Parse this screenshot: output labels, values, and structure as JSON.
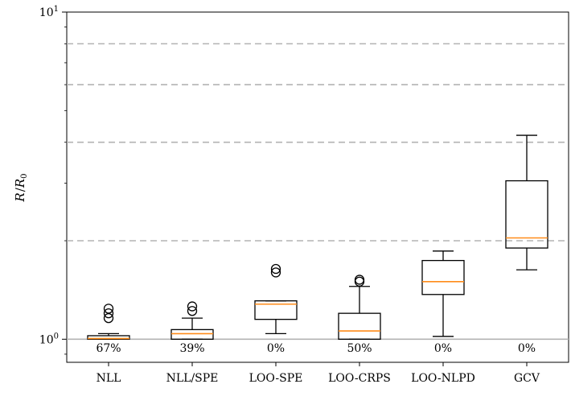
{
  "chart_data": {
    "type": "box",
    "title": "",
    "xlabel": "",
    "ylabel": "R / R0",
    "ylabel_parts": {
      "main": "R",
      "slash": "/",
      "base": "R",
      "sub": "0"
    },
    "yscale": "log",
    "ylim": [
      0.85,
      10
    ],
    "yticks": [
      {
        "value": 1,
        "base": "10",
        "exp": "0"
      },
      {
        "value": 10,
        "base": "10",
        "exp": "1"
      }
    ],
    "reference_line": 1,
    "grid": {
      "style": "dashed-horizontal",
      "values": [
        2,
        4,
        6,
        8
      ]
    },
    "categories": [
      "NLL",
      "NLL/SPE",
      "LOO-SPE",
      "LOO-CRPS",
      "LOO-NLPD",
      "GCV"
    ],
    "boxes": [
      {
        "whisker_low": 1.0,
        "q1": 1.0,
        "median": 1.005,
        "q3": 1.025,
        "whisker_high": 1.04,
        "outliers": [
          1.16,
          1.2,
          1.24
        ]
      },
      {
        "whisker_low": 1.0,
        "q1": 1.0,
        "median": 1.04,
        "q3": 1.07,
        "whisker_high": 1.16,
        "outliers": [
          1.22,
          1.26
        ]
      },
      {
        "whisker_low": 1.04,
        "q1": 1.15,
        "median": 1.28,
        "q3": 1.31,
        "whisker_high": 1.31,
        "outliers": [
          1.6,
          1.64
        ]
      },
      {
        "whisker_low": 1.0,
        "q1": 1.0,
        "median": 1.06,
        "q3": 1.2,
        "whisker_high": 1.45,
        "outliers": [
          1.5,
          1.52
        ]
      },
      {
        "whisker_low": 1.02,
        "q1": 1.37,
        "median": 1.5,
        "q3": 1.74,
        "whisker_high": 1.86,
        "outliers": []
      },
      {
        "whisker_low": 1.63,
        "q1": 1.9,
        "median": 2.04,
        "q3": 3.05,
        "whisker_high": 4.2,
        "outliers": []
      }
    ],
    "annotations": [
      "67%",
      "39%",
      "0%",
      "50%",
      "0%",
      "0%"
    ],
    "colors": {
      "median": "#ff8c1a",
      "grid": "#b3b3b3",
      "reference": "#b3b3b3",
      "box": "#000000"
    }
  }
}
